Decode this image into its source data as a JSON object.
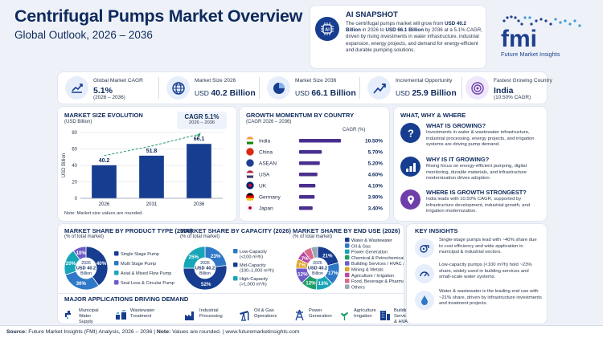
{
  "header": {
    "title": "Centrifugal Pumps Market Overview",
    "subtitle": "Global Outlook, 2026 – 2036"
  },
  "snapshot": {
    "title": "AI SNAPSHOT",
    "icon": "ai-chip-icon",
    "text_1": "The centrifugal pumps market will grow from ",
    "start_value": "USD 40.2 Billion",
    "text_2": " in 2026 to ",
    "end_value": "USD 66.1 Billion",
    "text_3": " by 2036 at a 5.1% CAGR, driven by rising investments in water infrastructure, industrial expansion, energy projects, and demand for energy-efficient and durable pumping solutions."
  },
  "logo": {
    "letters": "fmi",
    "name": "Future Market Insights",
    "colors": [
      "#1e3f8f",
      "#3f9ad6"
    ]
  },
  "stats": [
    {
      "icon": "growth-chart-icon",
      "label": "Global Market CAGR",
      "value": "5.1%",
      "sub": "(2026 – 2036)"
    },
    {
      "icon": "globe-icon",
      "label": "Market Size 2026",
      "prefix": "USD ",
      "value": "40.2 Billion"
    },
    {
      "icon": "pie-chart-icon",
      "label": "Market Size 2036",
      "prefix": "USD ",
      "value": "66.1 Billion"
    },
    {
      "icon": "trend-up-icon",
      "label": "Incremental Opportunity",
      "prefix": "USD ",
      "value": "25.9 Billion"
    },
    {
      "icon": "target-icon",
      "label": "Fastest Growing Country",
      "value": "India",
      "sub": "(10.50% CAGR)"
    }
  ],
  "market_size": {
    "title": "MARKET SIZE EVOLUTION",
    "unit": "(USD Billion)",
    "cagr_label": "CAGR",
    "cagr_value": "5.1%",
    "cagr_period": "2026 – 2036",
    "note": "Note: Market size values are rounded."
  },
  "growth_momentum": {
    "title": "GROWTH MOMENTUM BY COUNTRY",
    "sub": "(CAGR 2026 – 2036)",
    "column_header": "CAGR (%)"
  },
  "why": {
    "title": "WHAT, WHY & WHERE",
    "items": [
      {
        "icon": "question-icon",
        "title": "WHAT IS GROWING?",
        "text": "Investments in water & wastewater infrastructure, industrial processing, energy projects, and irrigation systems are driving pump demand."
      },
      {
        "icon": "bar-growth-icon",
        "title": "WHY IS IT GROWING?",
        "text": "Rising focus on energy-efficient pumping, digital monitoring, durable materials, and infrastructure modernization drives adoption."
      },
      {
        "icon": "location-pin-icon",
        "title": "WHERE IS GROWTH STRONGEST?",
        "text": "India leads with 10.50% CAGR, supported by infrastructure development, industrial growth, and irrigation modernization."
      }
    ]
  },
  "product_type": {
    "title": "MARKET SHARE BY PRODUCT TYPE (2026)",
    "sub": "(% of total market)",
    "center_1": "2026",
    "center_2": "USD 40.2",
    "center_3": "Billion"
  },
  "capacity": {
    "title": "MARKET SHARE BY CAPACITY (2026)",
    "sub": "(% of total market)",
    "center_1": "2026",
    "center_2": "USD 40.2",
    "center_3": "Billion"
  },
  "end_use": {
    "title": "MARKET SHARE BY END USE (2026)",
    "sub": "(% of total market)",
    "center_1": "2026",
    "center_2": "USD 40.2",
    "center_3": "Billion"
  },
  "insights": {
    "title": "KEY INSIGHTS",
    "items": [
      {
        "icon": "pump-icon",
        "text": "Single-stage pumps lead with ~40% share due to cost efficiency and wide application in municipal & industrial sectors."
      },
      {
        "icon": "gauge-icon",
        "text": "Low-capacity pumps (<100 m³/h) hold ~23% share, widely used in building services and small-scale water systems."
      },
      {
        "icon": "water-drop-icon",
        "text": "Water & wastewater is the leading end use with ~21% share, driven by infrastructure investments and treatment projects."
      }
    ]
  },
  "applications": {
    "title": "MAJOR APPLICATIONS DRIVING DEMAND",
    "items": [
      {
        "icon": "water-tap-icon",
        "label": "Municipal Water\nSupply"
      },
      {
        "icon": "treatment-plant-icon",
        "label": "Wastewater\nTreatment"
      },
      {
        "icon": "factory-icon",
        "label": "Industrial\nProcessing"
      },
      {
        "icon": "oil-pump-icon",
        "label": "Oil & Gas\nOperations"
      },
      {
        "icon": "power-tower-icon",
        "label": "Power\nGeneration"
      },
      {
        "icon": "irrigation-icon",
        "label": "Agriculture\nIrrigation"
      },
      {
        "icon": "building-icon",
        "label": "Building Services\n& HVAC"
      }
    ]
  },
  "footer": {
    "source_label": "Source:",
    "source_text": " Future Market Insights (FMI) Analysis, 2026 – 2036 | ",
    "note_label": "Note:",
    "note_text": " Values are rounded.  |  www.futuremarketinsights.com"
  },
  "chart_data": [
    {
      "type": "bar",
      "title": "MARKET SIZE EVOLUTION",
      "ylabel": "USD Billion",
      "categories": [
        "2026",
        "2031",
        "2036"
      ],
      "values": [
        40.2,
        51.8,
        66.1
      ],
      "ylim": [
        0,
        80
      ],
      "yticks": [
        0,
        20,
        40,
        60,
        80
      ],
      "grid": true,
      "trend_line": true,
      "colors": [
        "#163d8f",
        "#163d8f",
        "#163d8f"
      ]
    },
    {
      "type": "bar",
      "title": "GROWTH MOMENTUM BY COUNTRY",
      "orientation": "horizontal",
      "categories": [
        "India",
        "China",
        "ASEAN",
        "USA",
        "UK",
        "Germany",
        "Japan"
      ],
      "values": [
        10.5,
        5.7,
        5.2,
        4.6,
        4.1,
        3.9,
        3.4
      ],
      "value_labels": [
        "10.50%",
        "5.70%",
        "5.20%",
        "4.60%",
        "4.10%",
        "3.90%",
        "3.40%"
      ],
      "xlim": [
        0,
        10.5
      ],
      "color": "#4a2f8f"
    },
    {
      "type": "pie",
      "title": "MARKET SHARE BY PRODUCT TYPE (2026)",
      "donut": true,
      "categories": [
        "Single Stage Pump",
        "Multi Stage Pump",
        "Axial & Mixed Flow Pump",
        "Seal Less & Circular Pump"
      ],
      "values": [
        40,
        30,
        20,
        10
      ],
      "colors": [
        "#163d8f",
        "#2e78c7",
        "#17a6b8",
        "#6e5bc7"
      ]
    },
    {
      "type": "pie",
      "title": "MARKET SHARE BY CAPACITY (2026)",
      "donut": true,
      "categories": [
        "Low-Capacity (<100 m³/h)",
        "Mid-Capacity (100–1,000 m³/h)",
        "High-Capacity (>1,000 m³/h)"
      ],
      "values": [
        23,
        52,
        25
      ],
      "colors": [
        "#2e78c7",
        "#163d8f",
        "#17a6b8"
      ]
    },
    {
      "type": "pie",
      "title": "MARKET SHARE BY END USE (2026)",
      "donut": true,
      "categories": [
        "Water & Wastewater",
        "Oil & Gas",
        "Power Generation",
        "Chemical & Petrochemical",
        "Building Services / HVAC / Fire",
        "Mining & Metals",
        "Agriculture / Irrigation",
        "Food, Beverage & Pharma",
        "Others"
      ],
      "values": [
        21,
        17,
        13,
        12,
        12,
        7,
        7,
        6,
        5
      ],
      "labels": [
        "21%",
        "17%",
        "13%",
        "12%",
        "12%",
        "7%",
        "7%",
        "",
        ""
      ],
      "colors": [
        "#163d8f",
        "#2e78c7",
        "#17a6b8",
        "#1f9e6a",
        "#6e5bc7",
        "#e0a42b",
        "#b84aa8",
        "#d96a8e",
        "#9aa5b8"
      ]
    }
  ]
}
